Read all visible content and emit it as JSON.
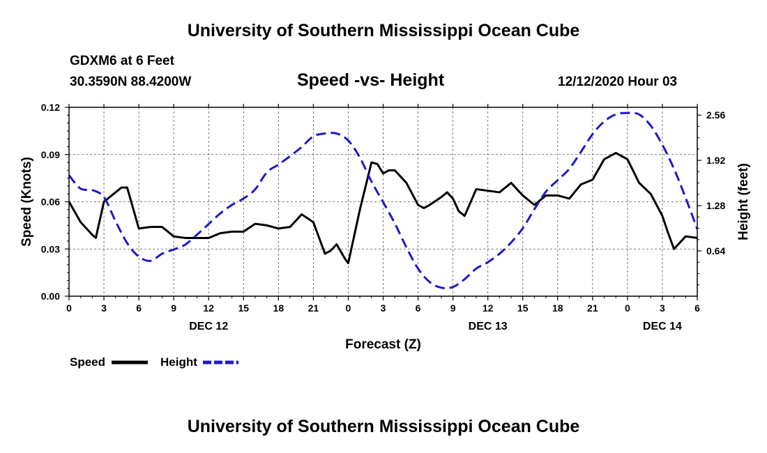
{
  "header": {
    "title": "University of Southern Mississippi Ocean Cube",
    "station": "GDXM6 at 6 Feet",
    "coords": "30.3590N 88.4200W",
    "datetime": "12/12/2020 Hour 03"
  },
  "footer": {
    "title": "University of Southern Mississippi Ocean Cube"
  },
  "colors": {
    "speed": "#000000",
    "height": "#1a1acc"
  },
  "chart_data": {
    "type": "line",
    "title": "Speed -vs- Height",
    "xlabel": "Forecast (Z)",
    "ylabel": "Speed (Knots)",
    "y2label": "Height (feet)",
    "xlim": [
      0,
      54
    ],
    "ylim": [
      0,
      0.12
    ],
    "y2lim": [
      0.0,
      2.67
    ],
    "x_ticks": [
      "0",
      "3",
      "6",
      "9",
      "12",
      "15",
      "18",
      "21",
      "0",
      "3",
      "6",
      "9",
      "12",
      "15",
      "18",
      "21",
      "0",
      "3",
      "6"
    ],
    "y_ticks": [
      "0.00",
      "0.03",
      "0.06",
      "0.09",
      "0.12"
    ],
    "y2_ticks": [
      "0.64",
      "1.28",
      "1.92",
      "2.56"
    ],
    "y2_tick_values": [
      0.64,
      1.28,
      1.92,
      2.56
    ],
    "date_labels": [
      {
        "text": "DEC 12",
        "at": 12
      },
      {
        "text": "DEC 13",
        "at": 36
      },
      {
        "text": "DEC 14",
        "at": 51
      }
    ],
    "series": [
      {
        "name": "Speed",
        "axis": "left",
        "x": [
          0,
          1,
          2,
          2.3,
          3,
          3.5,
          4,
          4.5,
          5,
          6,
          7,
          8,
          9,
          10,
          11,
          12,
          13,
          14,
          15,
          16,
          17,
          18,
          19,
          20,
          21,
          22,
          22.5,
          23,
          23.7,
          24,
          25,
          26,
          26.5,
          27,
          27.5,
          28,
          29,
          30,
          30.5,
          31,
          32,
          32.5,
          33,
          33.5,
          34,
          35,
          36,
          37,
          38,
          39,
          40,
          41,
          42,
          43,
          44,
          45,
          46,
          47,
          48,
          49,
          50,
          51,
          51.5,
          52,
          53,
          54
        ],
        "values": [
          0.06,
          0.047,
          0.039,
          0.037,
          0.06,
          0.063,
          0.066,
          0.069,
          0.069,
          0.043,
          0.044,
          0.044,
          0.038,
          0.037,
          0.037,
          0.037,
          0.04,
          0.041,
          0.041,
          0.046,
          0.045,
          0.043,
          0.044,
          0.052,
          0.047,
          0.027,
          0.029,
          0.033,
          0.024,
          0.021,
          0.055,
          0.085,
          0.084,
          0.078,
          0.08,
          0.08,
          0.072,
          0.058,
          0.056,
          0.058,
          0.063,
          0.066,
          0.062,
          0.054,
          0.051,
          0.068,
          0.067,
          0.066,
          0.072,
          0.064,
          0.058,
          0.064,
          0.064,
          0.062,
          0.071,
          0.074,
          0.087,
          0.091,
          0.087,
          0.072,
          0.065,
          0.051,
          0.04,
          0.03,
          0.038,
          0.037
        ]
      },
      {
        "name": "Height",
        "axis": "right",
        "x": [
          0,
          1,
          2,
          3,
          4,
          5,
          6,
          7,
          8,
          9,
          10,
          11,
          12,
          13,
          14,
          15,
          16,
          17,
          18,
          19,
          20,
          21,
          22,
          23,
          24,
          25,
          26,
          27,
          28,
          29,
          30,
          31,
          32,
          33,
          34,
          35,
          36,
          37,
          38,
          39,
          40,
          41,
          42,
          43,
          44,
          45,
          46,
          47,
          48,
          49,
          50,
          51,
          52,
          53,
          54
        ],
        "values": [
          1.71,
          1.52,
          1.5,
          1.4,
          1.06,
          0.75,
          0.56,
          0.5,
          0.6,
          0.66,
          0.73,
          0.87,
          1.02,
          1.17,
          1.29,
          1.38,
          1.51,
          1.75,
          1.86,
          1.98,
          2.11,
          2.26,
          2.3,
          2.3,
          2.2,
          1.96,
          1.62,
          1.33,
          1.03,
          0.69,
          0.39,
          0.2,
          0.12,
          0.13,
          0.24,
          0.39,
          0.48,
          0.6,
          0.76,
          0.96,
          1.23,
          1.48,
          1.64,
          1.8,
          2.04,
          2.29,
          2.47,
          2.57,
          2.59,
          2.57,
          2.41,
          2.14,
          1.8,
          1.39,
          0.95
        ]
      }
    ],
    "legend": [
      {
        "name": "Speed",
        "style": "solid"
      },
      {
        "name": "Height",
        "style": "dashed"
      }
    ],
    "legend_position": "bottom-left"
  }
}
